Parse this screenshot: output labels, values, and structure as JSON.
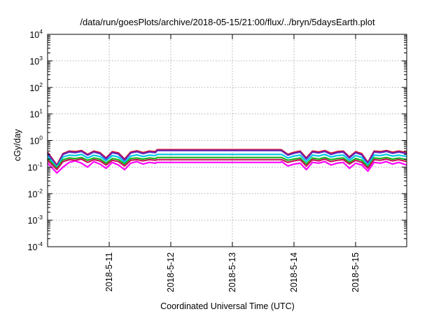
{
  "chart_data": {
    "type": "line",
    "title": "/data/run/goesPlots/archive/2018-05-15/21:00/flux/../bryn/5daysEarth.plot",
    "xlabel": "Coordinated Universal Time (UTC)",
    "ylabel": "cGy/day",
    "y_scale": "log",
    "ylim": [
      0.0001,
      10000
    ],
    "xlim": [
      0,
      5.83
    ],
    "grid": true,
    "legend": "none",
    "x_ticks": [
      {
        "value": 1,
        "label": "2018-5-11"
      },
      {
        "value": 2,
        "label": "2018-5-12"
      },
      {
        "value": 3,
        "label": "2018-5-13"
      },
      {
        "value": 4,
        "label": "2018-5-14"
      },
      {
        "value": 5,
        "label": "2018-5-15"
      }
    ],
    "y_ticks": [
      {
        "value": 0.0001,
        "base": "10",
        "exp": "-4"
      },
      {
        "value": 0.001,
        "base": "10",
        "exp": "-3"
      },
      {
        "value": 0.01,
        "base": "10",
        "exp": "-2"
      },
      {
        "value": 0.1,
        "base": "10",
        "exp": "-1"
      },
      {
        "value": 1,
        "base": "10",
        "exp": "0"
      },
      {
        "value": 10,
        "base": "10",
        "exp": "1"
      },
      {
        "value": 100,
        "base": "10",
        "exp": "2"
      },
      {
        "value": 1000,
        "base": "10",
        "exp": "3"
      },
      {
        "value": 10000,
        "base": "10",
        "exp": "4"
      }
    ],
    "series": [
      {
        "color": "#ff00ff",
        "x": [
          0.0,
          0.15,
          0.25,
          0.35,
          0.45,
          0.55,
          0.65,
          0.75,
          0.85,
          0.95,
          1.05,
          1.15,
          1.25,
          1.35,
          1.45,
          1.55,
          1.65,
          1.75,
          1.78,
          3.78,
          3.8,
          3.9,
          4.0,
          4.1,
          4.2,
          4.3,
          4.4,
          4.5,
          4.6,
          4.7,
          4.8,
          4.9,
          5.0,
          5.1,
          5.2,
          5.3,
          5.4,
          5.5,
          5.6,
          5.7,
          5.83
        ],
        "values": [
          0.14,
          0.06,
          0.1,
          0.15,
          0.17,
          0.14,
          0.1,
          0.16,
          0.13,
          0.09,
          0.15,
          0.12,
          0.08,
          0.14,
          0.16,
          0.13,
          0.15,
          0.14,
          0.15,
          0.15,
          0.16,
          0.11,
          0.13,
          0.14,
          0.08,
          0.15,
          0.14,
          0.16,
          0.12,
          0.14,
          0.15,
          0.09,
          0.14,
          0.12,
          0.07,
          0.15,
          0.14,
          0.16,
          0.13,
          0.15,
          0.12
        ]
      },
      {
        "color": "#ff0000",
        "x": [
          0.0,
          0.15,
          0.25,
          0.35,
          0.45,
          0.55,
          0.65,
          0.75,
          0.85,
          0.95,
          1.05,
          1.15,
          1.25,
          1.35,
          1.45,
          1.55,
          1.65,
          1.75,
          1.78,
          3.78,
          3.8,
          3.9,
          4.0,
          4.1,
          4.2,
          4.3,
          4.4,
          4.5,
          4.6,
          4.7,
          4.8,
          4.9,
          5.0,
          5.1,
          5.2,
          5.3,
          5.4,
          5.5,
          5.6,
          5.7,
          5.83
        ],
        "values": [
          0.36,
          0.12,
          0.32,
          0.4,
          0.38,
          0.42,
          0.3,
          0.4,
          0.35,
          0.22,
          0.38,
          0.34,
          0.2,
          0.37,
          0.41,
          0.35,
          0.4,
          0.38,
          0.45,
          0.45,
          0.44,
          0.3,
          0.36,
          0.4,
          0.22,
          0.4,
          0.37,
          0.42,
          0.33,
          0.38,
          0.4,
          0.24,
          0.38,
          0.32,
          0.15,
          0.4,
          0.38,
          0.42,
          0.36,
          0.4,
          0.35
        ]
      },
      {
        "color": "#1e3cff",
        "x": [
          0.0,
          0.15,
          0.25,
          0.35,
          0.45,
          0.55,
          0.65,
          0.75,
          0.85,
          0.95,
          1.05,
          1.15,
          1.25,
          1.35,
          1.45,
          1.55,
          1.65,
          1.75,
          1.78,
          3.78,
          3.8,
          3.9,
          4.0,
          4.1,
          4.2,
          4.3,
          4.4,
          4.5,
          4.6,
          4.7,
          4.8,
          4.9,
          5.0,
          5.1,
          5.2,
          5.3,
          5.4,
          5.5,
          5.6,
          5.7,
          5.83
        ],
        "values": [
          0.32,
          0.11,
          0.3,
          0.37,
          0.35,
          0.39,
          0.28,
          0.37,
          0.32,
          0.2,
          0.35,
          0.31,
          0.18,
          0.34,
          0.38,
          0.32,
          0.37,
          0.35,
          0.42,
          0.42,
          0.41,
          0.28,
          0.33,
          0.37,
          0.2,
          0.37,
          0.34,
          0.39,
          0.3,
          0.35,
          0.37,
          0.22,
          0.35,
          0.29,
          0.14,
          0.37,
          0.35,
          0.39,
          0.33,
          0.37,
          0.32
        ]
      },
      {
        "color": "#7b1fa2",
        "x": [
          0.0,
          0.15,
          0.25,
          0.35,
          0.45,
          0.55,
          0.65,
          0.75,
          0.85,
          0.95,
          1.05,
          1.15,
          1.25,
          1.35,
          1.45,
          1.55,
          1.65,
          1.75,
          1.78,
          3.78,
          3.8,
          3.9,
          4.0,
          4.1,
          4.2,
          4.3,
          4.4,
          4.5,
          4.6,
          4.7,
          4.8,
          4.9,
          5.0,
          5.1,
          5.2,
          5.3,
          5.4,
          5.5,
          5.6,
          5.7,
          5.83
        ],
        "values": [
          0.34,
          0.115,
          0.31,
          0.38,
          0.36,
          0.4,
          0.29,
          0.38,
          0.33,
          0.21,
          0.36,
          0.32,
          0.19,
          0.35,
          0.39,
          0.33,
          0.38,
          0.36,
          0.43,
          0.43,
          0.42,
          0.29,
          0.34,
          0.38,
          0.21,
          0.38,
          0.35,
          0.4,
          0.31,
          0.36,
          0.38,
          0.23,
          0.36,
          0.3,
          0.145,
          0.38,
          0.36,
          0.4,
          0.34,
          0.38,
          0.33
        ]
      },
      {
        "color": "#00c8e6",
        "x": [
          0.0,
          0.15,
          0.25,
          0.35,
          0.45,
          0.55,
          0.65,
          0.75,
          0.85,
          0.95,
          1.05,
          1.15,
          1.25,
          1.35,
          1.45,
          1.55,
          1.65,
          1.75,
          1.78,
          3.78,
          3.8,
          3.9,
          4.0,
          4.1,
          4.2,
          4.3,
          4.4,
          4.5,
          4.6,
          4.7,
          4.8,
          4.9,
          5.0,
          5.1,
          5.2,
          5.3,
          5.4,
          5.5,
          5.6,
          5.7,
          5.83
        ],
        "values": [
          0.26,
          0.1,
          0.24,
          0.28,
          0.27,
          0.3,
          0.22,
          0.28,
          0.25,
          0.17,
          0.27,
          0.24,
          0.15,
          0.26,
          0.29,
          0.25,
          0.28,
          0.27,
          0.3,
          0.3,
          0.3,
          0.22,
          0.26,
          0.28,
          0.16,
          0.28,
          0.26,
          0.3,
          0.24,
          0.27,
          0.28,
          0.18,
          0.27,
          0.23,
          0.12,
          0.28,
          0.27,
          0.3,
          0.26,
          0.28,
          0.25
        ]
      },
      {
        "color": "#19b419",
        "x": [
          0.0,
          0.15,
          0.25,
          0.35,
          0.45,
          0.55,
          0.65,
          0.75,
          0.85,
          0.95,
          1.05,
          1.15,
          1.25,
          1.35,
          1.45,
          1.55,
          1.65,
          1.75,
          1.78,
          3.78,
          3.8,
          3.9,
          4.0,
          4.1,
          4.2,
          4.3,
          4.4,
          4.5,
          4.6,
          4.7,
          4.8,
          4.9,
          5.0,
          5.1,
          5.2,
          5.3,
          5.4,
          5.5,
          5.6,
          5.7,
          5.83
        ],
        "values": [
          0.21,
          0.09,
          0.19,
          0.22,
          0.21,
          0.23,
          0.18,
          0.22,
          0.2,
          0.14,
          0.21,
          0.19,
          0.13,
          0.21,
          0.22,
          0.2,
          0.22,
          0.21,
          0.23,
          0.23,
          0.23,
          0.18,
          0.2,
          0.22,
          0.13,
          0.22,
          0.2,
          0.23,
          0.19,
          0.21,
          0.22,
          0.15,
          0.21,
          0.18,
          0.1,
          0.22,
          0.21,
          0.23,
          0.2,
          0.22,
          0.19
        ]
      },
      {
        "color": "#c8145a",
        "x": [
          0.0,
          0.15,
          0.25,
          0.35,
          0.45,
          0.55,
          0.65,
          0.75,
          0.85,
          0.95,
          1.05,
          1.15,
          1.25,
          1.35,
          1.45,
          1.55,
          1.65,
          1.75,
          1.78,
          3.78,
          3.8,
          3.9,
          4.0,
          4.1,
          4.2,
          4.3,
          4.4,
          4.5,
          4.6,
          4.7,
          4.8,
          4.9,
          5.0,
          5.1,
          5.2,
          5.3,
          5.4,
          5.5,
          5.6,
          5.7,
          5.83
        ],
        "values": [
          0.18,
          0.08,
          0.16,
          0.19,
          0.18,
          0.2,
          0.15,
          0.19,
          0.17,
          0.12,
          0.18,
          0.16,
          0.11,
          0.18,
          0.19,
          0.17,
          0.19,
          0.18,
          0.19,
          0.19,
          0.19,
          0.15,
          0.17,
          0.19,
          0.11,
          0.19,
          0.17,
          0.2,
          0.16,
          0.18,
          0.19,
          0.13,
          0.18,
          0.15,
          0.09,
          0.19,
          0.18,
          0.2,
          0.17,
          0.19,
          0.16
        ]
      }
    ]
  }
}
